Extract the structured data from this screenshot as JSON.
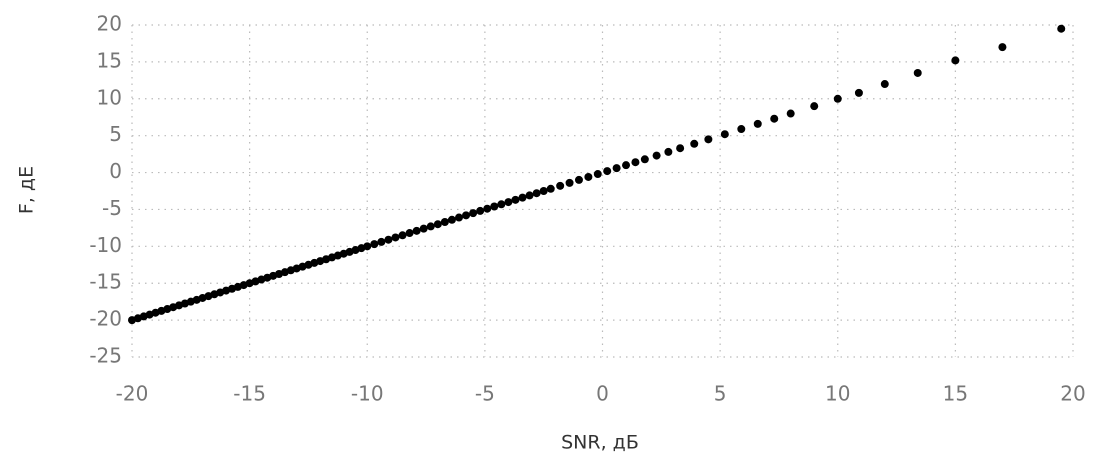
{
  "chart_data": {
    "type": "scatter",
    "xlabel": "SNR, дБ",
    "ylabel": "F, дЕ",
    "xlim": [
      -20,
      20
    ],
    "ylim": [
      -25,
      20
    ],
    "xticks": [
      -20,
      -15,
      -10,
      -5,
      0,
      5,
      10,
      15,
      20
    ],
    "yticks": [
      -25,
      -20,
      -15,
      -10,
      -5,
      0,
      5,
      10,
      15,
      20
    ],
    "grid": true,
    "color": "#000000",
    "x": [
      -20,
      -19.75,
      -19.5,
      -19.25,
      -19,
      -18.75,
      -18.5,
      -18.25,
      -18,
      -17.75,
      -17.5,
      -17.25,
      -17,
      -16.75,
      -16.5,
      -16.25,
      -16,
      -15.75,
      -15.5,
      -15.25,
      -15,
      -14.75,
      -14.5,
      -14.25,
      -14,
      -13.75,
      -13.5,
      -13.25,
      -13,
      -12.75,
      -12.5,
      -12.25,
      -12,
      -11.75,
      -11.5,
      -11.25,
      -11,
      -10.75,
      -10.5,
      -10.25,
      -10,
      -9.7,
      -9.4,
      -9.1,
      -8.8,
      -8.5,
      -8.2,
      -7.9,
      -7.6,
      -7.3,
      -7,
      -6.7,
      -6.4,
      -6.1,
      -5.8,
      -5.5,
      -5.2,
      -4.9,
      -4.6,
      -4.3,
      -4,
      -3.7,
      -3.4,
      -3.1,
      -2.8,
      -2.5,
      -2.2,
      -1.8,
      -1.4,
      -1,
      -0.6,
      -0.2,
      0.2,
      0.6,
      1,
      1.4,
      1.8,
      2.3,
      2.8,
      3.3,
      3.9,
      4.5,
      5.2,
      5.9,
      6.6,
      7.3,
      8,
      9,
      10,
      10.9,
      12,
      13.4,
      15,
      17,
      19.5
    ],
    "values": [
      -20,
      -19.75,
      -19.5,
      -19.25,
      -19,
      -18.75,
      -18.5,
      -18.25,
      -18,
      -17.75,
      -17.5,
      -17.25,
      -17,
      -16.75,
      -16.5,
      -16.25,
      -16,
      -15.75,
      -15.5,
      -15.25,
      -15,
      -14.75,
      -14.5,
      -14.25,
      -14,
      -13.75,
      -13.5,
      -13.25,
      -13,
      -12.75,
      -12.5,
      -12.25,
      -12,
      -11.75,
      -11.5,
      -11.25,
      -11,
      -10.75,
      -10.5,
      -10.25,
      -10,
      -9.7,
      -9.4,
      -9.1,
      -8.8,
      -8.5,
      -8.2,
      -7.9,
      -7.6,
      -7.3,
      -7,
      -6.7,
      -6.4,
      -6.1,
      -5.8,
      -5.5,
      -5.2,
      -4.9,
      -4.6,
      -4.3,
      -4,
      -3.7,
      -3.4,
      -3.1,
      -2.8,
      -2.5,
      -2.2,
      -1.8,
      -1.4,
      -1,
      -0.6,
      -0.2,
      0.2,
      0.6,
      1,
      1.4,
      1.8,
      2.3,
      2.8,
      3.3,
      3.9,
      4.5,
      5.2,
      5.9,
      6.6,
      7.3,
      8,
      9,
      10,
      10.8,
      12,
      13.5,
      15.2,
      17,
      19.5
    ]
  }
}
